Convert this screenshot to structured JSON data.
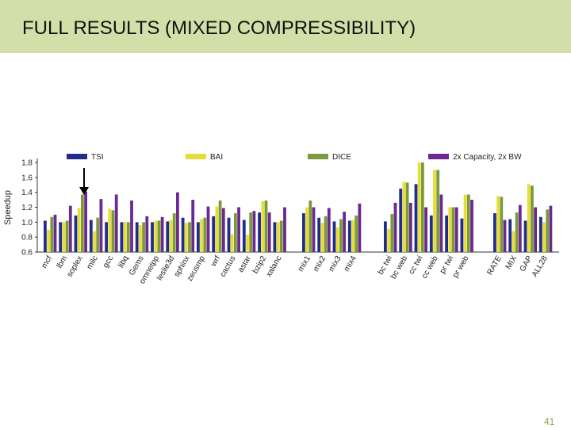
{
  "slide": {
    "title": "FULL RESULTS (MIXED COMPRESSIBILITY)",
    "page_number": "41"
  },
  "colors": {
    "title_bar": "#d2dfa8",
    "TSI": "#1f2e8c",
    "BAI": "#e8dc3a",
    "DICE": "#7b9a3a",
    "2x": "#6a2a90"
  },
  "chart_data": {
    "type": "bar",
    "ylabel": "Speedup",
    "ylim": [
      0.6,
      1.8
    ],
    "yticks": [
      "0.6",
      "0.8",
      "1.0",
      "1.2",
      "1.4",
      "1.6",
      "1.8"
    ],
    "legend_position": "top",
    "annotation": "arrow pointing to soplex",
    "groups": [
      [
        "mcf",
        "lbm",
        "soplex",
        "milc",
        "gcc",
        "libq",
        "Gems",
        "omnetpp",
        "leslie3d",
        "sphinx",
        "zeusmp",
        "wrf",
        "cactus",
        "astar",
        "bzip2",
        "xalanc"
      ],
      [
        "mix1",
        "mix2",
        "mix3",
        "mix4"
      ],
      [
        "bc twi",
        "bc web",
        "cc twi",
        "cc web",
        "pr twi",
        "pr web"
      ],
      [
        "RATE",
        "MIX",
        "GAP",
        "ALL28"
      ]
    ],
    "categories": [
      "mcf",
      "lbm",
      "soplex",
      "milc",
      "gcc",
      "libq",
      "Gems",
      "omnetpp",
      "leslie3d",
      "sphinx",
      "zeusmp",
      "wrf",
      "cactus",
      "astar",
      "bzip2",
      "xalanc",
      "mix1",
      "mix2",
      "mix3",
      "mix4",
      "bc twi",
      "bc web",
      "cc twi",
      "cc web",
      "pr twi",
      "pr web",
      "RATE",
      "MIX",
      "GAP",
      "ALL28"
    ],
    "series": [
      {
        "name": "TSI",
        "values": [
          1.02,
          1.0,
          1.09,
          1.03,
          1.0,
          1.0,
          1.0,
          1.0,
          1.01,
          1.06,
          1.0,
          1.08,
          1.06,
          1.03,
          1.13,
          1.0,
          1.12,
          1.06,
          1.01,
          1.02,
          1.01,
          1.45,
          1.51,
          1.09,
          1.09,
          1.05,
          1.12,
          1.04,
          1.02,
          1.07
        ]
      },
      {
        "name": "BAI",
        "values": [
          0.9,
          1.0,
          1.19,
          0.88,
          1.18,
          1.0,
          0.96,
          1.02,
          1.03,
          0.99,
          1.04,
          1.21,
          0.84,
          0.83,
          1.28,
          1.0,
          1.2,
          0.99,
          0.93,
          1.03,
          0.91,
          1.54,
          1.8,
          1.7,
          1.2,
          1.37,
          1.35,
          0.88,
          1.51,
          1.0
        ]
      },
      {
        "name": "DICE",
        "values": [
          1.07,
          1.02,
          1.37,
          1.06,
          1.16,
          1.0,
          1.0,
          1.02,
          1.12,
          1.0,
          1.06,
          1.29,
          1.12,
          1.13,
          1.29,
          1.02,
          1.29,
          1.08,
          1.04,
          1.09,
          1.11,
          1.53,
          1.8,
          1.7,
          1.2,
          1.37,
          1.34,
          1.13,
          1.49,
          1.17
        ]
      },
      {
        "name": "2x Capacity, 2x BW",
        "values": [
          1.1,
          1.22,
          1.41,
          1.31,
          1.37,
          1.29,
          1.08,
          1.07,
          1.4,
          1.3,
          1.21,
          1.19,
          1.2,
          1.15,
          1.13,
          1.2,
          1.2,
          1.19,
          1.14,
          1.25,
          1.26,
          1.26,
          1.2,
          1.37,
          1.2,
          1.3,
          1.03,
          1.23,
          1.2,
          1.22
        ]
      }
    ]
  }
}
